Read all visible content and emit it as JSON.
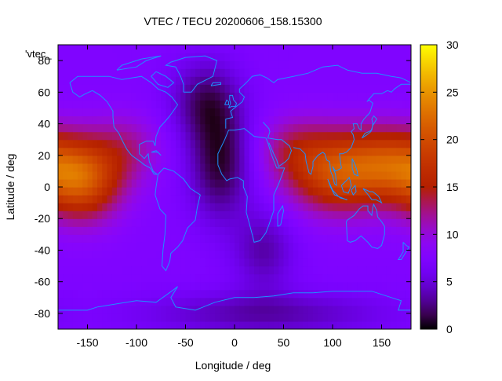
{
  "chart_data": {
    "type": "heatmap",
    "title": "VTEC / TECU 20200606_158.15300",
    "xlabel": "Longitude / deg",
    "ylabel": "Latitude / deg",
    "legend_label": "'vtec_",
    "xlim": [
      -180,
      180
    ],
    "ylim": [
      -90,
      90
    ],
    "x_ticks": [
      -150,
      -100,
      -50,
      0,
      50,
      100,
      150
    ],
    "y_ticks": [
      -80,
      -60,
      -40,
      -20,
      0,
      20,
      40,
      60,
      80
    ],
    "colorbar": {
      "range": [
        0,
        30
      ],
      "ticks": [
        0,
        5,
        10,
        15,
        20,
        25,
        30
      ],
      "palette": "black-purple-red-orange-yellow"
    },
    "grid": false,
    "overlay": "coastlines",
    "overlay_color": "#1e90ff",
    "field_model": {
      "background_tecu": 7.5,
      "features": [
        {
          "lon": -155,
          "lat": 5,
          "peak_tecu": 12.5,
          "sigma_lon": 28,
          "sigma_lat": 18
        },
        {
          "lon": -110,
          "lat": 25,
          "peak_tecu": 4,
          "sigma_lon": 25,
          "sigma_lat": 15
        },
        {
          "lon": 105,
          "lat": 10,
          "peak_tecu": 12,
          "sigma_lon": 35,
          "sigma_lat": 18
        },
        {
          "lon": 160,
          "lat": 15,
          "peak_tecu": 9,
          "sigma_lon": 30,
          "sigma_lat": 16
        },
        {
          "lon": 60,
          "lat": 25,
          "peak_tecu": 4,
          "sigma_lon": 25,
          "sigma_lat": 14
        },
        {
          "lon": -15,
          "lat": 15,
          "peak_tecu": -6.5,
          "sigma_lon": 22,
          "sigma_lat": 25
        },
        {
          "lon": -30,
          "lat": 55,
          "peak_tecu": -5,
          "sigma_lon": 25,
          "sigma_lat": 18
        },
        {
          "lon": 30,
          "lat": -40,
          "peak_tecu": -4,
          "sigma_lon": 22,
          "sigma_lat": 18
        },
        {
          "lon": 30,
          "lat": -80,
          "peak_tecu": -4,
          "sigma_lon": 90,
          "sigma_lat": 10
        }
      ]
    }
  }
}
